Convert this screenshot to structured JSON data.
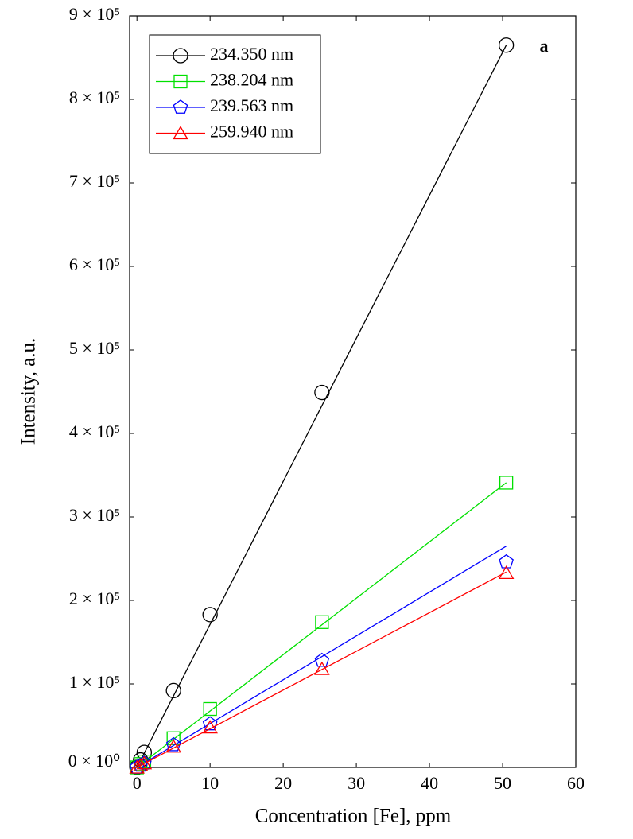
{
  "chart_data": {
    "type": "scatter",
    "annotation": "a",
    "x_label": "Concentration [Fe], ppm",
    "y_label": "Intensity, a.u.",
    "xlim": [
      -1,
      60
    ],
    "xticks": [
      0,
      10,
      20,
      30,
      40,
      50,
      60
    ],
    "ylim": [
      0,
      900000
    ],
    "yticks": [
      {
        "value": 0,
        "label": "0 × 10⁰"
      },
      {
        "value": 100000,
        "label": "1 × 10⁵"
      },
      {
        "value": 200000,
        "label": "2 × 10⁵"
      },
      {
        "value": 300000,
        "label": "3 × 10⁵"
      },
      {
        "value": 400000,
        "label": "4 × 10⁵"
      },
      {
        "value": 500000,
        "label": "5 × 10⁵"
      },
      {
        "value": 600000,
        "label": "6 × 10⁵"
      },
      {
        "value": 700000,
        "label": "7 × 10⁵"
      },
      {
        "value": 800000,
        "label": "8 × 10⁵"
      },
      {
        "value": 900000,
        "label": "9 × 10⁵"
      }
    ],
    "legend": "upper left",
    "series": [
      {
        "name": "234.350 nm",
        "color": "#000000",
        "marker": "circle",
        "x": [
          0,
          0.5,
          1,
          5,
          10,
          25.3,
          50.5
        ],
        "values": [
          0,
          9000,
          18000,
          92000,
          183000,
          449000,
          865000
        ],
        "fit_x": [
          0,
          50.5
        ],
        "fit_values": [
          0,
          865000
        ]
      },
      {
        "name": "238.204 nm",
        "color": "#00e000",
        "marker": "square",
        "x": [
          0,
          0.5,
          1,
          5,
          10,
          25.3,
          50.5
        ],
        "values": [
          0,
          4000,
          7000,
          35000,
          70000,
          174000,
          341000
        ],
        "fit_x": [
          0,
          50.5
        ],
        "fit_values": [
          0,
          341000
        ]
      },
      {
        "name": "239.563 nm",
        "color": "#0000ff",
        "marker": "pentagon",
        "x": [
          0,
          0.5,
          1,
          5,
          10,
          25.3,
          50.5
        ],
        "values": [
          0,
          2500,
          5000,
          27000,
          52000,
          128000,
          246000
        ],
        "fit_x": [
          0,
          50.5
        ],
        "fit_values": [
          0,
          265000
        ]
      },
      {
        "name": "259.940 nm",
        "color": "#ff0000",
        "marker": "triangle",
        "x": [
          0,
          0.5,
          1,
          5,
          10,
          25.3,
          50.5
        ],
        "values": [
          0,
          2500,
          5000,
          25000,
          48000,
          118000,
          233000
        ],
        "fit_x": [
          0,
          50.5
        ],
        "fit_values": [
          0,
          234000
        ]
      }
    ]
  }
}
